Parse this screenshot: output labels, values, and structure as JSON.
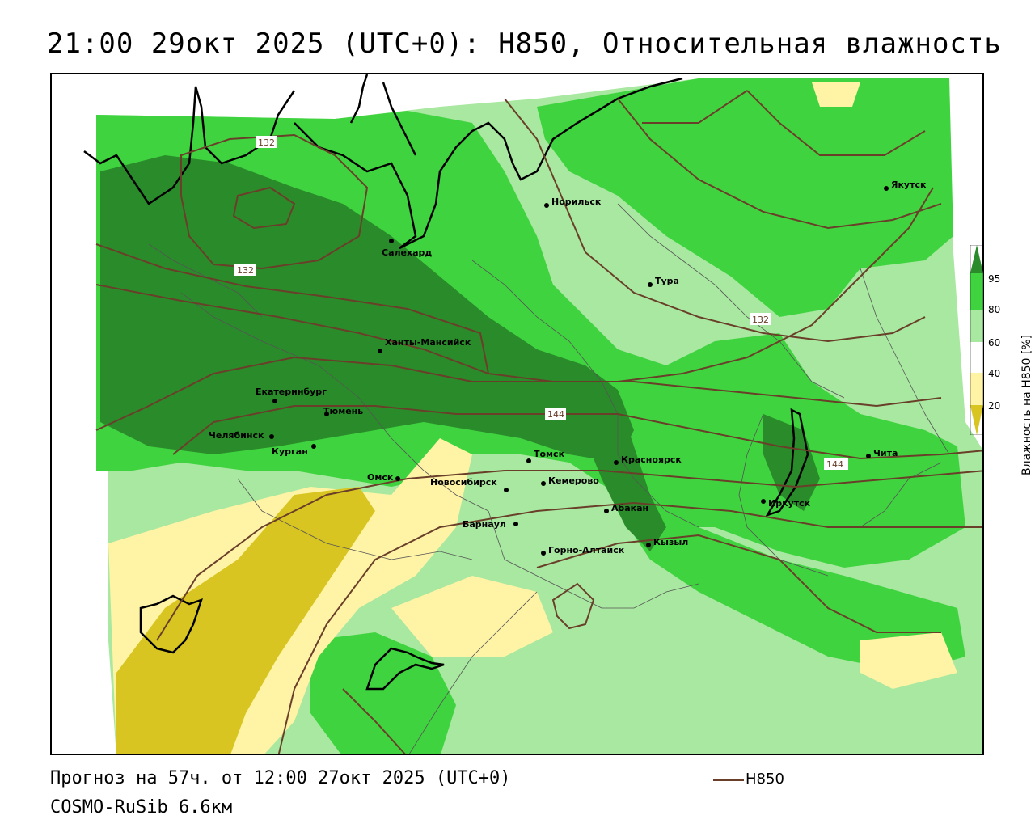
{
  "header": {
    "title": "21:00 29окт 2025 (UTC+0): H850, Относительная влажность"
  },
  "footer": {
    "forecast": "Прогноз на 57ч. от 12:00 27окт 2025 (UTC+0)",
    "model": "COSMO-RuSib 6.6км",
    "legend_line_label": "H850"
  },
  "colorbar": {
    "title": "Влажность на H850 [%]",
    "levels": [
      "95",
      "80",
      "60",
      "40",
      "20"
    ],
    "colors": {
      "very_wet": "#2a8b2a",
      "wet": "#3fd43f",
      "moist": "#a8e8a0",
      "neutral": "#ffffff",
      "dry": "#fff3a6",
      "very_dry": "#d8c521"
    }
  },
  "isohypses": {
    "color": "#6a3f2a",
    "labels": [
      "132",
      "132",
      "132",
      "144",
      "144"
    ]
  },
  "cities": [
    {
      "name": "Якутск"
    },
    {
      "name": "Норильск"
    },
    {
      "name": "Салехард"
    },
    {
      "name": "Тура"
    },
    {
      "name": "Ханты-Мансийск"
    },
    {
      "name": "Екатеринбург"
    },
    {
      "name": "Тюмень"
    },
    {
      "name": "Челябинск"
    },
    {
      "name": "Курган"
    },
    {
      "name": "Омск"
    },
    {
      "name": "Новосибирск"
    },
    {
      "name": "Томск"
    },
    {
      "name": "Кемерово"
    },
    {
      "name": "Красноярск"
    },
    {
      "name": "Барнаул"
    },
    {
      "name": "Абакан"
    },
    {
      "name": "Горно-Алтайск"
    },
    {
      "name": "Кызыл"
    },
    {
      "name": "Иркутск"
    },
    {
      "name": "Чита"
    }
  ]
}
